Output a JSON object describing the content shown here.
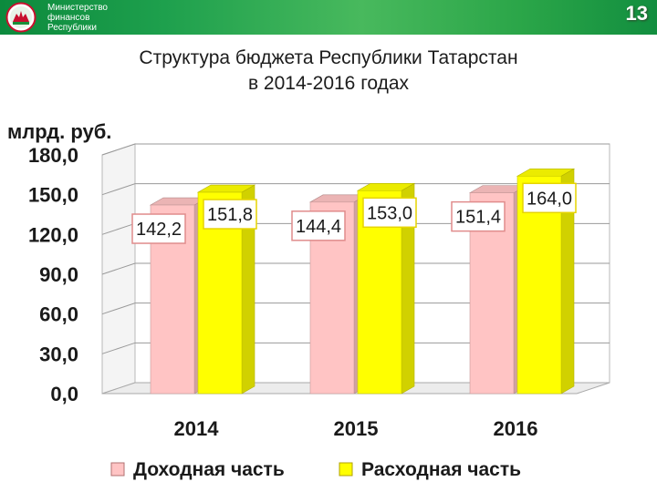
{
  "header": {
    "ministry_lines": [
      "Министерство",
      "финансов",
      "Республики"
    ],
    "slide_number": "13"
  },
  "title_lines": [
    "Структура бюджета Республики Татарстан",
    "в 2014-2016 годах"
  ],
  "colors": {
    "income": "#ffc4c4",
    "expense": "#ffff00"
  },
  "chart_data": {
    "type": "bar",
    "title": "",
    "ylabel": "млрд. руб.",
    "xlabel": "",
    "categories": [
      "2014",
      "2015",
      "2016"
    ],
    "series": [
      {
        "name": "Доходная часть",
        "values": [
          142.2,
          144.4,
          151.4
        ],
        "labels": [
          "142,2",
          "144,4",
          "151,4"
        ]
      },
      {
        "name": "Расходная часть",
        "values": [
          151.8,
          153.0,
          164.0
        ],
        "labels": [
          "151,8",
          "153,0",
          "164,0"
        ]
      }
    ],
    "ylim": [
      0,
      180
    ],
    "yticks": [
      0,
      30,
      60,
      90,
      120,
      150,
      180
    ],
    "ytick_labels": [
      "0,0",
      "30,0",
      "60,0",
      "90,0",
      "120,0",
      "150,0",
      "180,0"
    ],
    "grid": true,
    "legend": "bottom",
    "style": "3d-column"
  }
}
